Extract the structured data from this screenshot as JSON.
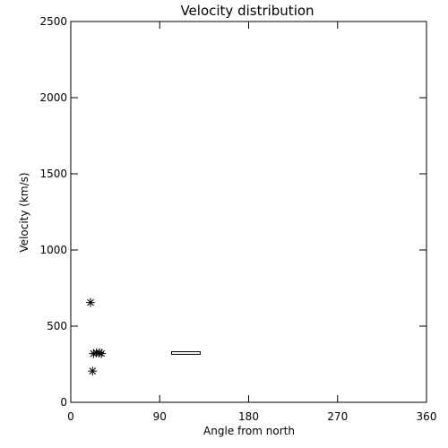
{
  "chart_data": {
    "type": "scatter",
    "title": "Velocity distribution",
    "xlabel": "Angle from north",
    "ylabel": "Velocity (km/s)",
    "xlim": [
      0,
      360
    ],
    "ylim": [
      0,
      2500
    ],
    "x_ticks": [
      0,
      90,
      180,
      270,
      360
    ],
    "y_ticks": [
      0,
      500,
      1000,
      1500,
      2000,
      2500
    ],
    "x_tick_labels": [
      "0",
      "90",
      "180",
      "270",
      "360"
    ],
    "y_tick_labels": [
      "0",
      "500",
      "1000",
      "1500",
      "2000",
      "2500"
    ],
    "grid": false,
    "series": [
      {
        "marker": "asterisk",
        "points": [
          {
            "x": 20,
            "y": 655
          },
          {
            "x": 23,
            "y": 320
          },
          {
            "x": 26,
            "y": 325
          },
          {
            "x": 29,
            "y": 325
          },
          {
            "x": 31,
            "y": 320
          },
          {
            "x": 22,
            "y": 205
          }
        ]
      },
      {
        "marker": "range-bar",
        "points": [
          {
            "x_start": 102,
            "x_end": 131,
            "y_low": 315,
            "y_high": 332
          }
        ]
      }
    ]
  }
}
